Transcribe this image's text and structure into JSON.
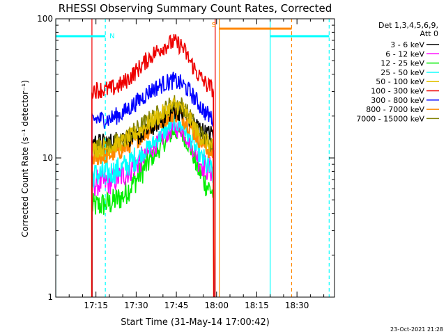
{
  "chart_data": {
    "type": "line",
    "title": "RHESSI Observing Summary Count Rates, Corrected",
    "xlabel": "Start Time (31-May-14 17:00:42)",
    "ylabel": "Corrected Count Rate (s⁻¹ detector⁻¹)",
    "y_scale": "log",
    "ylim": [
      1,
      100
    ],
    "y_ticks": [
      {
        "value": 1,
        "label": "1"
      },
      {
        "value": 10,
        "label": "10"
      },
      {
        "value": 100,
        "label": "100"
      }
    ],
    "xlim_minutes": [
      0,
      104
    ],
    "x_ticks": [
      {
        "minutes": 15,
        "label": "17:15"
      },
      {
        "minutes": 30,
        "label": "17:30"
      },
      {
        "minutes": 45,
        "label": "17:45"
      },
      {
        "minutes": 60,
        "label": "18:00"
      },
      {
        "minutes": 75,
        "label": "18:15"
      },
      {
        "minutes": 90,
        "label": "18:30"
      }
    ],
    "legend": {
      "placement": "right",
      "header": [
        "Det 1,3,4,5,6,9,",
        "Att 0"
      ],
      "entries": [
        {
          "label": "3 - 6 keV",
          "color": "#000000"
        },
        {
          "label": "6 - 12 keV",
          "color": "#ff00ff"
        },
        {
          "label": "12 - 25 keV",
          "color": "#00ee00"
        },
        {
          "label": "25 - 50 keV",
          "color": "#00ffff"
        },
        {
          "label": "50 - 100 keV",
          "color": "#e0c000"
        },
        {
          "label": "100 - 300 keV",
          "color": "#ee0000"
        },
        {
          "label": "300 - 800 keV",
          "color": "#0000ff"
        },
        {
          "label": "800 - 7000 keV",
          "color": "#ff8800"
        },
        {
          "label": "7000 - 15000 keV",
          "color": "#808000"
        }
      ]
    },
    "data_interval_minutes": [
      13.5,
      59
    ],
    "series": [
      {
        "name": "3 - 6 keV",
        "color": "#000000",
        "x": [
          14,
          20,
          25,
          30,
          35,
          40,
          44,
          47,
          50,
          53,
          56,
          59
        ],
        "y": [
          13,
          13,
          14,
          14,
          16,
          19,
          22,
          21,
          19,
          17,
          15,
          15
        ]
      },
      {
        "name": "6 - 12 keV",
        "color": "#ff00ff",
        "x": [
          14,
          20,
          25,
          30,
          35,
          40,
          44,
          47,
          50,
          53,
          56,
          59
        ],
        "y": [
          6.5,
          6.7,
          7.5,
          9,
          11,
          14,
          16.5,
          16,
          13,
          10,
          8.5,
          8
        ]
      },
      {
        "name": "12 - 25 keV",
        "color": "#00ee00",
        "x": [
          14,
          20,
          25,
          30,
          35,
          40,
          44,
          47,
          50,
          53,
          56,
          59
        ],
        "y": [
          4.5,
          4.7,
          5.3,
          7,
          9.5,
          12.5,
          15.5,
          15,
          12,
          8.5,
          6.5,
          5.5
        ]
      },
      {
        "name": "25 - 50 keV",
        "color": "#00ffff",
        "x": [
          14,
          20,
          25,
          30,
          35,
          40,
          44,
          47,
          50,
          53,
          56,
          59
        ],
        "y": [
          7.5,
          7.8,
          8.5,
          10,
          12,
          15,
          18,
          17,
          14,
          11,
          9,
          7.5
        ]
      },
      {
        "name": "50 - 100 keV",
        "color": "#e0c000",
        "x": [
          14,
          20,
          25,
          30,
          35,
          40,
          44,
          47,
          50,
          53,
          56,
          59
        ],
        "y": [
          11.5,
          12,
          13,
          15,
          18,
          21,
          24,
          23,
          19,
          15,
          13,
          12
        ]
      },
      {
        "name": "100 - 300 keV",
        "color": "#ee0000",
        "x": [
          14,
          20,
          25,
          30,
          35,
          40,
          44,
          47,
          50,
          53,
          56,
          59
        ],
        "y": [
          31,
          31,
          34,
          42,
          53,
          63,
          68,
          64,
          50,
          40,
          34,
          31
        ]
      },
      {
        "name": "300 - 800 keV",
        "color": "#0000ff",
        "x": [
          14,
          20,
          25,
          30,
          35,
          40,
          44,
          47,
          50,
          53,
          56,
          59
        ],
        "y": [
          19,
          19,
          21,
          25,
          30,
          34,
          36,
          34,
          30,
          25,
          21,
          19
        ]
      },
      {
        "name": "800 - 7000 keV",
        "color": "#ff8800",
        "x": [
          14,
          20,
          25,
          30,
          35,
          40,
          44,
          47,
          50,
          53,
          56,
          59
        ],
        "y": [
          10,
          10.5,
          11.5,
          13.5,
          16,
          19,
          21,
          20,
          17,
          14,
          12,
          10.5
        ]
      },
      {
        "name": "7000 - 15000 keV",
        "color": "#808000",
        "x": [
          14,
          20,
          25,
          30,
          35,
          40,
          44,
          47,
          50,
          53,
          56,
          59
        ],
        "y": [
          12,
          12.5,
          13.5,
          16,
          19,
          22,
          25,
          24,
          20,
          16,
          13.5,
          12.5
        ]
      }
    ],
    "segments": [
      {
        "label": "N",
        "color": "#00ffff",
        "x_minutes": [
          0,
          18.5
        ],
        "y": 75
      },
      {
        "label": "S",
        "color": "#ff8800",
        "x_minutes": [
          61,
          88
        ],
        "y": 85
      },
      {
        "label": "",
        "color": "#00ffff",
        "x_minutes": [
          80,
          102
        ],
        "y": 75
      }
    ],
    "markers": [
      {
        "color": "#00ffff",
        "style": "solid",
        "x_minutes": 0
      },
      {
        "color": "#ee0000",
        "style": "solid",
        "x_minutes": 13.5
      },
      {
        "color": "#00ffff",
        "style": "dashed",
        "x_minutes": 18.5
      },
      {
        "color": "#ee0000",
        "style": "solid",
        "x_minutes": 59.5
      },
      {
        "color": "#ff8800",
        "style": "solid",
        "x_minutes": 61
      },
      {
        "color": "#00ffff",
        "style": "solid",
        "x_minutes": 80
      },
      {
        "color": "#ff8800",
        "style": "dashed",
        "x_minutes": 88
      },
      {
        "color": "#00ffff",
        "style": "dashed",
        "x_minutes": 102
      }
    ]
  },
  "footer": {
    "timestamp": "23-Oct-2021 21:28"
  }
}
